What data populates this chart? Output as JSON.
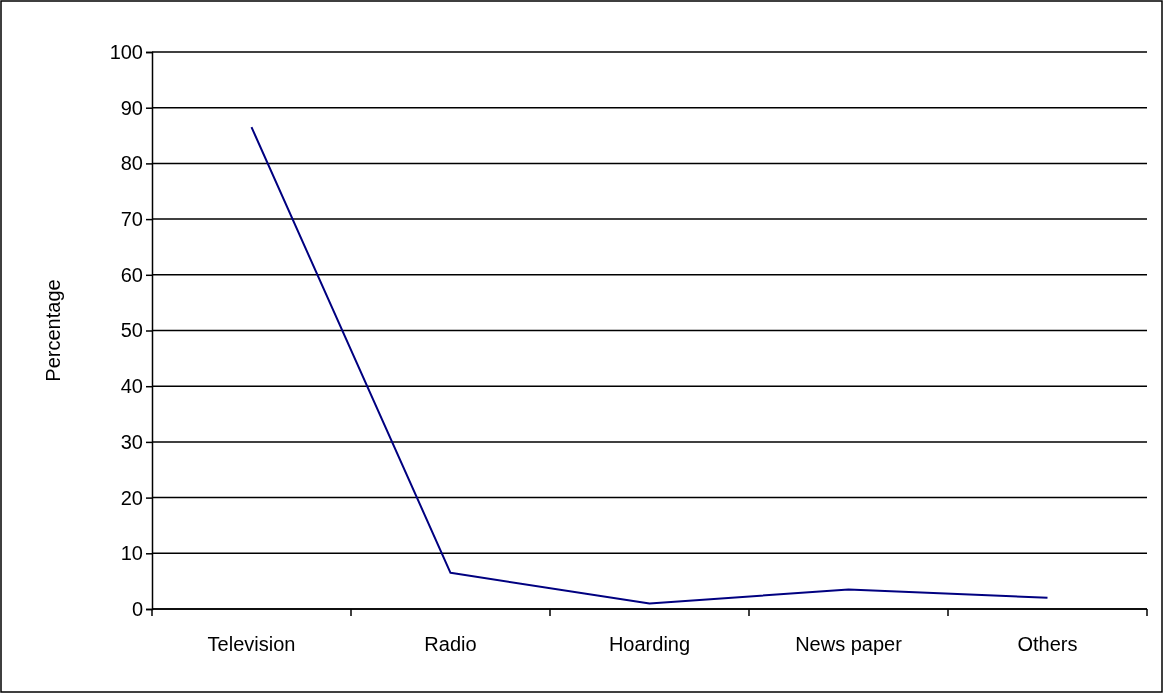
{
  "chart_data": {
    "type": "line",
    "ylabel": "Percentage",
    "categories": [
      "Television",
      "Radio",
      "Hoarding",
      "News paper",
      "Others"
    ],
    "series": [
      {
        "color": "#000080",
        "values": [
          86.5,
          6.5,
          1.0,
          3.5,
          2.0
        ]
      }
    ],
    "ylim": [
      0,
      100
    ],
    "yticks": [
      0,
      10,
      20,
      30,
      40,
      50,
      60,
      70,
      80,
      90,
      100
    ],
    "grid": "y",
    "marker": "none"
  }
}
